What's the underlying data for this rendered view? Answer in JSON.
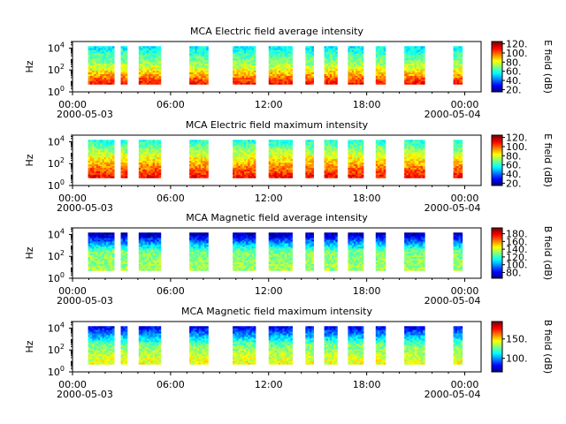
{
  "chart_data": [
    {
      "type": "heatmap",
      "title": "MCA  Electric field average intensity",
      "ylabel": "Hz",
      "y_scale": "log",
      "ylim": [
        1,
        40000
      ],
      "y_ticks": [
        {
          "base": "10",
          "exp": "0"
        },
        {
          "base": "10",
          "exp": "2"
        },
        {
          "base": "10",
          "exp": "4"
        }
      ],
      "x_ticks": [
        "00:00",
        "06:00",
        "12:00",
        "18:00",
        "00:00"
      ],
      "x_dates": [
        "2000-05-03",
        "2000-05-04"
      ],
      "colorbar": {
        "label": "E field (dB)",
        "range": [
          15,
          125
        ],
        "ticks": [
          "20.",
          "40.",
          "60.",
          "80.",
          "100.",
          "120."
        ]
      },
      "data_intervals_hours": [
        [
          0.95,
          2.55
        ],
        [
          2.95,
          3.35
        ],
        [
          4.05,
          5.4
        ],
        [
          7.15,
          8.3
        ],
        [
          9.8,
          11.2
        ],
        [
          12.0,
          13.45
        ],
        [
          14.25,
          14.75
        ],
        [
          15.4,
          16.2
        ],
        [
          16.85,
          17.8
        ],
        [
          18.55,
          19.15
        ],
        [
          20.3,
          21.55
        ],
        [
          23.3,
          23.85
        ]
      ],
      "intensity_profile_db": {
        "bottom": 110,
        "middle": 75,
        "top": 55
      }
    },
    {
      "type": "heatmap",
      "title": "MCA  Electric field maximum intensity",
      "ylabel": "Hz",
      "y_scale": "log",
      "ylim": [
        1,
        40000
      ],
      "y_ticks": [
        {
          "base": "10",
          "exp": "0"
        },
        {
          "base": "10",
          "exp": "2"
        },
        {
          "base": "10",
          "exp": "4"
        }
      ],
      "x_ticks": [
        "00:00",
        "06:00",
        "12:00",
        "18:00",
        "00:00"
      ],
      "x_dates": [
        "2000-05-03",
        "2000-05-04"
      ],
      "colorbar": {
        "label": "E field (dB)",
        "range": [
          15,
          125
        ],
        "ticks": [
          "20.",
          "40.",
          "60.",
          "80.",
          "100.",
          "120."
        ]
      },
      "data_intervals_hours": [
        [
          0.95,
          2.55
        ],
        [
          2.95,
          3.35
        ],
        [
          4.05,
          5.4
        ],
        [
          7.15,
          8.3
        ],
        [
          9.8,
          11.2
        ],
        [
          12.0,
          13.45
        ],
        [
          14.25,
          14.75
        ],
        [
          15.4,
          16.2
        ],
        [
          16.85,
          17.8
        ],
        [
          18.55,
          19.15
        ],
        [
          20.3,
          21.55
        ],
        [
          23.3,
          23.85
        ]
      ],
      "intensity_profile_db": {
        "bottom": 112,
        "middle": 85,
        "top": 60
      }
    },
    {
      "type": "heatmap",
      "title": "MCA  Magnetic field average intensity",
      "ylabel": "Hz",
      "y_scale": "log",
      "ylim": [
        1,
        40000
      ],
      "y_ticks": [
        {
          "base": "10",
          "exp": "0"
        },
        {
          "base": "10",
          "exp": "2"
        },
        {
          "base": "10",
          "exp": "4"
        }
      ],
      "x_ticks": [
        "00:00",
        "06:00",
        "12:00",
        "18:00",
        "00:00"
      ],
      "x_dates": [
        "2000-05-03",
        "2000-05-04"
      ],
      "colorbar": {
        "label": "B field (dB)",
        "range": [
          65,
          195
        ],
        "ticks": [
          "80.",
          "100.",
          "120.",
          "140.",
          "160.",
          "180."
        ]
      },
      "data_intervals_hours": [
        [
          0.95,
          2.55
        ],
        [
          2.95,
          3.35
        ],
        [
          4.05,
          5.4
        ],
        [
          7.15,
          8.3
        ],
        [
          9.8,
          11.2
        ],
        [
          12.0,
          13.45
        ],
        [
          14.25,
          14.75
        ],
        [
          15.4,
          16.2
        ],
        [
          16.85,
          17.8
        ],
        [
          18.55,
          19.15
        ],
        [
          20.3,
          21.55
        ],
        [
          23.3,
          23.85
        ]
      ],
      "intensity_profile_db": {
        "bottom": 135,
        "middle": 130,
        "top": 70
      }
    },
    {
      "type": "heatmap",
      "title": "MCA  Magnetic field maximum intensity",
      "ylabel": "Hz",
      "y_scale": "log",
      "ylim": [
        1,
        40000
      ],
      "y_ticks": [
        {
          "base": "10",
          "exp": "0"
        },
        {
          "base": "10",
          "exp": "2"
        },
        {
          "base": "10",
          "exp": "4"
        }
      ],
      "x_ticks": [
        "00:00",
        "06:00",
        "12:00",
        "18:00",
        "00:00"
      ],
      "x_dates": [
        "2000-05-03",
        "2000-05-04"
      ],
      "colorbar": {
        "label": "B field (dB)",
        "range": [
          65,
          195
        ],
        "ticks": [
          "100.",
          "150."
        ]
      },
      "data_intervals_hours": [
        [
          0.95,
          2.55
        ],
        [
          2.95,
          3.35
        ],
        [
          4.05,
          5.4
        ],
        [
          7.15,
          8.3
        ],
        [
          9.8,
          11.2
        ],
        [
          12.0,
          13.45
        ],
        [
          14.25,
          14.75
        ],
        [
          15.4,
          16.2
        ],
        [
          16.85,
          17.8
        ],
        [
          18.55,
          19.15
        ],
        [
          20.3,
          21.55
        ],
        [
          23.3,
          23.85
        ]
      ],
      "intensity_profile_db": {
        "bottom": 145,
        "middle": 130,
        "top": 80
      }
    }
  ]
}
